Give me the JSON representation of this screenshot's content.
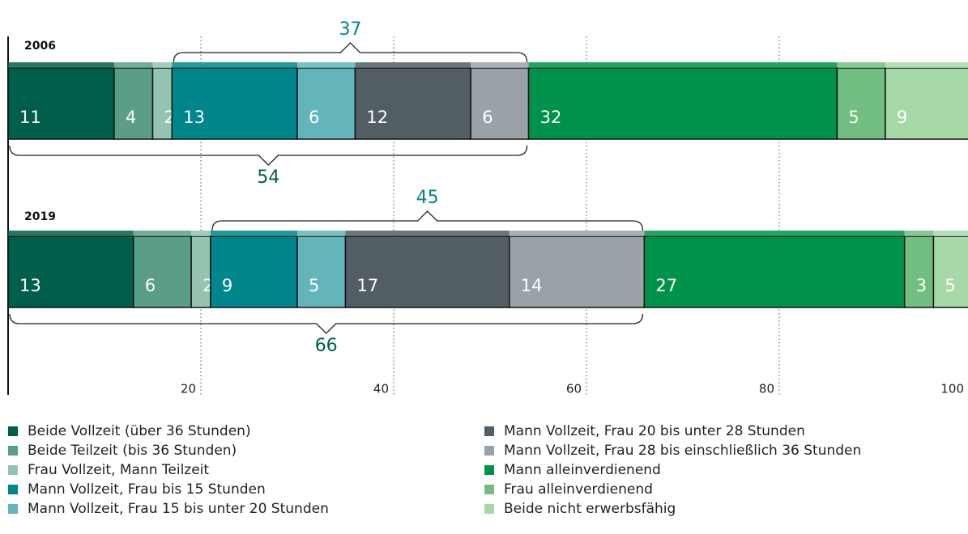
{
  "chart_data": {
    "type": "stacked-bar-horizontal",
    "categories": [
      "2006",
      "2019"
    ],
    "series": [
      {
        "name": "Beide Vollzeit (über 36 Stunden)",
        "color": "#005f4b",
        "values": [
          11,
          13
        ]
      },
      {
        "name": "Beide Teilzeit (bis 36 Stunden)",
        "color": "#5a9e87",
        "values": [
          4,
          6
        ]
      },
      {
        "name": "Frau Vollzeit, Mann Teilzeit",
        "color": "#94c3b0",
        "values": [
          2,
          2
        ]
      },
      {
        "name": "Mann Vollzeit, Frau bis 15 Stunden",
        "color": "#00868b",
        "values": [
          13,
          9
        ]
      },
      {
        "name": "Mann Vollzeit, Frau 15 bis unter 20 Stunden",
        "color": "#63b5b9",
        "values": [
          6,
          5
        ]
      },
      {
        "name": "Mann Vollzeit, Frau 20 bis unter 28 Stunden",
        "color": "#525e63",
        "values": [
          12,
          17
        ]
      },
      {
        "name": "Mann Vollzeit, Frau 28 bis einschließlich 36 Stunden",
        "color": "#98a2a8",
        "values": [
          6,
          14
        ]
      },
      {
        "name": "Mann alleinverdienend",
        "color": "#00924a",
        "values": [
          32,
          27
        ]
      },
      {
        "name": "Frau alleinverdienend",
        "color": "#72bd82",
        "values": [
          5,
          3
        ]
      },
      {
        "name": "Beide nicht erwerbsfähig",
        "color": "#a7d8a8",
        "values": [
          9,
          5
        ]
      }
    ],
    "brackets": [
      [
        37,
        54
      ],
      [
        45,
        66
      ]
    ],
    "xlim": [
      0,
      100
    ],
    "xticks": [
      20,
      40,
      60,
      80,
      100
    ],
    "grid": true
  }
}
